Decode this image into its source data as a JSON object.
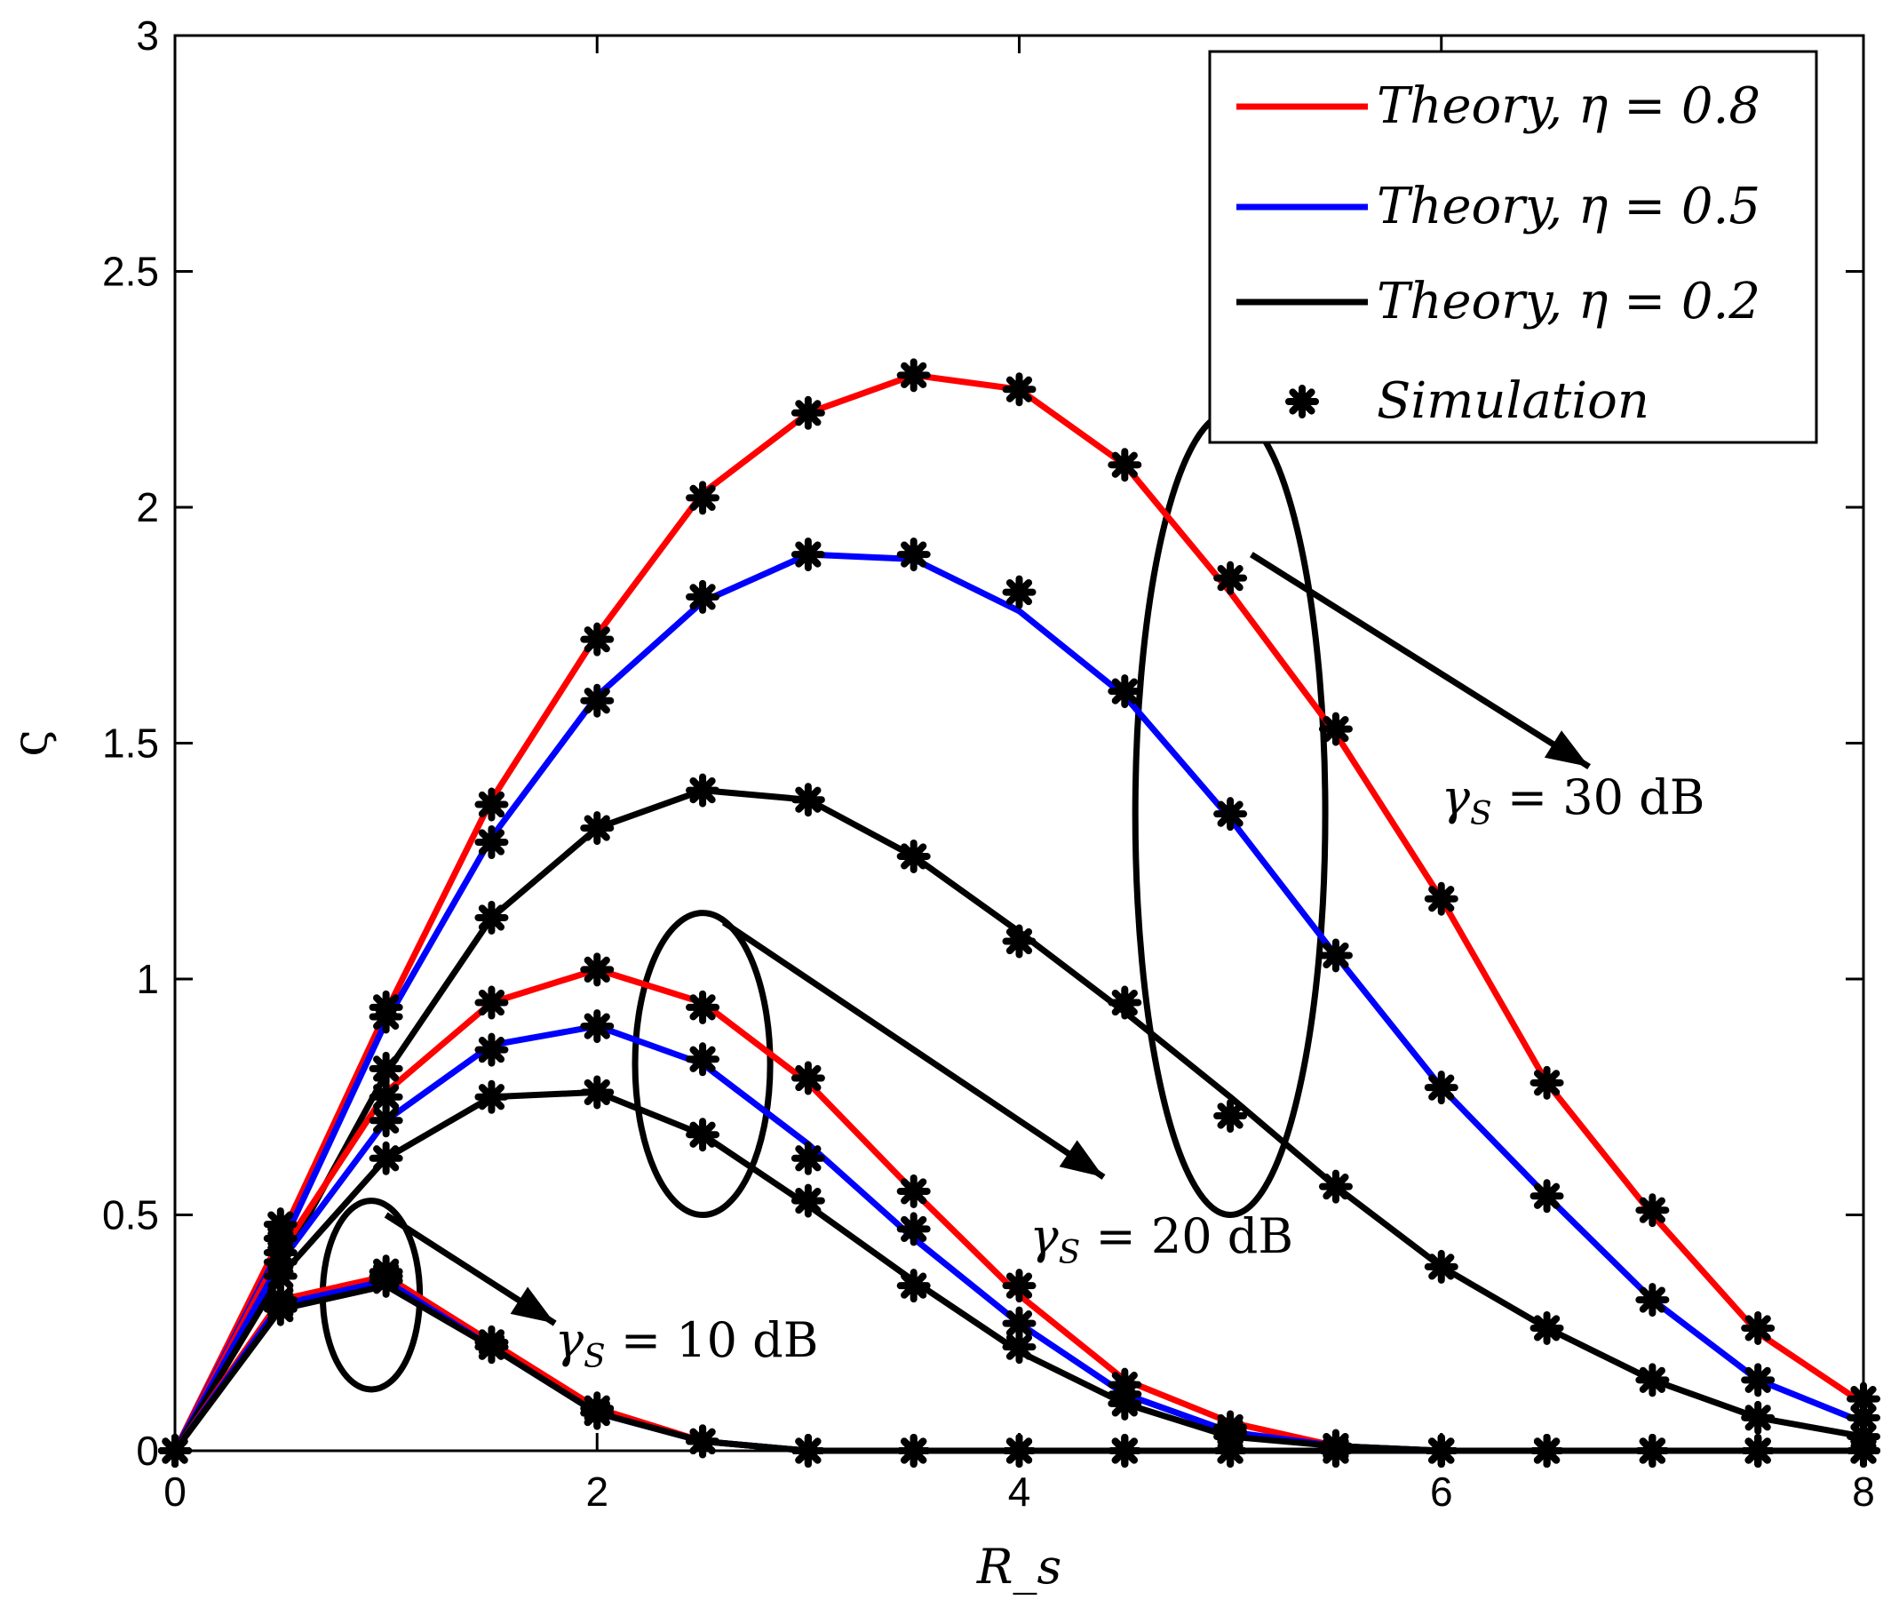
{
  "chart_data": {
    "type": "line",
    "title": "",
    "xlabel": "R_s",
    "ylabel": "ς",
    "xlim": [
      0,
      8
    ],
    "ylim": [
      0,
      3
    ],
    "x_ticks": [
      "0",
      "2",
      "4",
      "6",
      "8"
    ],
    "y_ticks": [
      "0",
      "0.5",
      "1",
      "1.5",
      "2",
      "2.5",
      "3"
    ],
    "grid": false,
    "legend_position": "top-right",
    "legend": [
      {
        "label": "Theory, η = 0.8",
        "color": "#ff0000",
        "kind": "line"
      },
      {
        "label": "Theory, η = 0.5",
        "color": "#0000ff",
        "kind": "line"
      },
      {
        "label": "Theory, η = 0.2",
        "color": "#000000",
        "kind": "line"
      },
      {
        "label": "Simulation",
        "color": "#000000",
        "kind": "marker"
      }
    ],
    "x": [
      0,
      0.5,
      1,
      1.5,
      2,
      2.5,
      3,
      3.5,
      4,
      4.5,
      5,
      5.5,
      6,
      6.5,
      7,
      7.5,
      8
    ],
    "groups": [
      {
        "name": "γS = 30 dB",
        "series": [
          {
            "name": "Theory, η = 0.8",
            "color": "#ff0000",
            "theory": [
              0,
              0.45,
              0.93,
              1.38,
              1.73,
              2.03,
              2.2,
              2.28,
              2.25,
              2.09,
              1.82,
              1.52,
              1.17,
              0.78,
              0.5,
              0.25,
              0.1
            ],
            "simulation": [
              0,
              0.48,
              0.94,
              1.37,
              1.72,
              2.02,
              2.2,
              2.28,
              2.25,
              2.09,
              1.85,
              1.53,
              1.17,
              0.78,
              0.51,
              0.26,
              0.11
            ]
          },
          {
            "name": "Theory, η = 0.5",
            "color": "#0000ff",
            "theory": [
              0,
              0.43,
              0.91,
              1.3,
              1.6,
              1.8,
              1.9,
              1.89,
              1.78,
              1.6,
              1.34,
              1.05,
              0.77,
              0.54,
              0.32,
              0.15,
              0.06
            ],
            "simulation": [
              0,
              0.45,
              0.92,
              1.29,
              1.59,
              1.81,
              1.9,
              1.9,
              1.82,
              1.61,
              1.35,
              1.05,
              0.77,
              0.54,
              0.32,
              0.15,
              0.07
            ]
          },
          {
            "name": "Theory, η = 0.2",
            "color": "#000000",
            "theory": [
              0,
              0.39,
              0.8,
              1.13,
              1.32,
              1.4,
              1.38,
              1.26,
              1.1,
              0.93,
              0.75,
              0.56,
              0.39,
              0.26,
              0.15,
              0.07,
              0.03
            ],
            "simulation": [
              0,
              0.4,
              0.81,
              1.13,
              1.32,
              1.4,
              1.38,
              1.26,
              1.08,
              0.95,
              0.71,
              0.56,
              0.39,
              0.26,
              0.15,
              0.07,
              0.03
            ]
          }
        ]
      },
      {
        "name": "γS = 20 dB",
        "series": [
          {
            "name": "Theory, η = 0.8",
            "color": "#ff0000",
            "theory": [
              0,
              0.42,
              0.76,
              0.95,
              1.02,
              0.95,
              0.78,
              0.55,
              0.33,
              0.15,
              0.06,
              0.01,
              0,
              0,
              0,
              0,
              0
            ],
            "simulation": [
              0,
              0.45,
              0.75,
              0.95,
              1.02,
              0.94,
              0.79,
              0.55,
              0.35,
              0.14,
              0.05,
              0.01,
              0,
              0,
              0,
              0,
              0
            ]
          },
          {
            "name": "Theory, η = 0.5",
            "color": "#0000ff",
            "theory": [
              0,
              0.4,
              0.7,
              0.86,
              0.9,
              0.82,
              0.65,
              0.45,
              0.27,
              0.12,
              0.04,
              0.01,
              0,
              0,
              0,
              0,
              0
            ],
            "simulation": [
              0,
              0.42,
              0.7,
              0.85,
              0.9,
              0.83,
              0.62,
              0.47,
              0.27,
              0.12,
              0.04,
              0.01,
              0,
              0,
              0,
              0,
              0
            ]
          },
          {
            "name": "Theory, η = 0.2",
            "color": "#000000",
            "theory": [
              0,
              0.37,
              0.62,
              0.75,
              0.76,
              0.67,
              0.52,
              0.36,
              0.21,
              0.1,
              0.03,
              0.01,
              0,
              0,
              0,
              0,
              0
            ],
            "simulation": [
              0,
              0.37,
              0.62,
              0.75,
              0.76,
              0.67,
              0.53,
              0.35,
              0.22,
              0.1,
              0.03,
              0.01,
              0,
              0,
              0,
              0,
              0
            ]
          }
        ]
      },
      {
        "name": "γS = 10 dB",
        "series": [
          {
            "name": "Theory, η = 0.8",
            "color": "#ff0000",
            "theory": [
              0,
              0.32,
              0.37,
              0.23,
              0.09,
              0.02,
              0,
              0,
              0,
              0,
              0,
              0,
              0,
              0,
              0,
              0,
              0
            ],
            "simulation": [
              0,
              0.32,
              0.38,
              0.23,
              0.09,
              0.02,
              0,
              0,
              0,
              0,
              0,
              0,
              0,
              0,
              0,
              0,
              0
            ]
          },
          {
            "name": "Theory, η = 0.5",
            "color": "#0000ff",
            "theory": [
              0,
              0.31,
              0.36,
              0.22,
              0.08,
              0.02,
              0,
              0,
              0,
              0,
              0,
              0,
              0,
              0,
              0,
              0,
              0
            ],
            "simulation": [
              0,
              0.31,
              0.37,
              0.22,
              0.08,
              0.02,
              0,
              0,
              0,
              0,
              0,
              0,
              0,
              0,
              0,
              0,
              0
            ]
          },
          {
            "name": "Theory, η = 0.2",
            "color": "#000000",
            "theory": [
              0,
              0.3,
              0.35,
              0.22,
              0.08,
              0.02,
              0,
              0,
              0,
              0,
              0,
              0,
              0,
              0,
              0,
              0,
              0
            ],
            "simulation": [
              0,
              0.3,
              0.36,
              0.22,
              0.08,
              0.02,
              0,
              0,
              0,
              0,
              0,
              0,
              0,
              0,
              0,
              0,
              0
            ]
          }
        ]
      }
    ],
    "annotations": [
      {
        "label_var": "γ",
        "label_sub": "S",
        "label_rest": " = 30 dB",
        "ellipse_center": [
          5,
          1.35
        ],
        "ellipse_radii": [
          0.45,
          0.85
        ],
        "arrow_from": [
          5.1,
          1.9
        ],
        "arrow_to": [
          6.7,
          1.45
        ],
        "label_at": [
          6.0,
          1.35
        ]
      },
      {
        "label_var": "γ",
        "label_sub": "S",
        "label_rest": " = 20 dB",
        "ellipse_center": [
          2.5,
          0.82
        ],
        "ellipse_radii": [
          0.32,
          0.32
        ],
        "arrow_from": [
          2.6,
          1.12
        ],
        "arrow_to": [
          4.4,
          0.58
        ],
        "label_at": [
          4.05,
          0.42
        ]
      },
      {
        "label_var": "γ",
        "label_sub": "S",
        "label_rest": " = 10 dB",
        "ellipse_center": [
          0.93,
          0.33
        ],
        "ellipse_radii": [
          0.23,
          0.2
        ],
        "arrow_from": [
          1.0,
          0.5
        ],
        "arrow_to": [
          1.8,
          0.27
        ],
        "label_at": [
          1.8,
          0.2
        ]
      }
    ]
  }
}
